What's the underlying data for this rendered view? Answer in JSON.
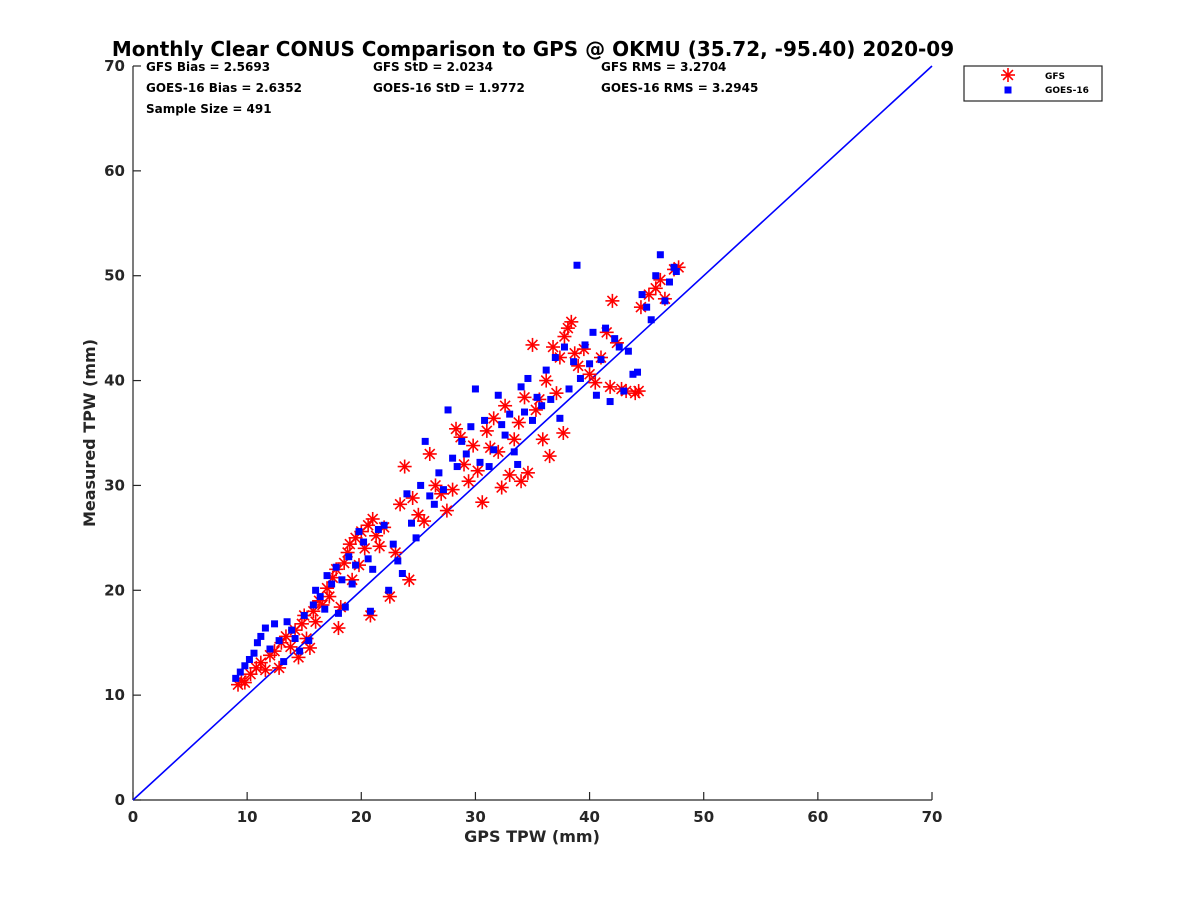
{
  "chart_data": {
    "type": "scatter",
    "title": "Monthly Clear CONUS Comparison to GPS @ OKMU (35.72, -95.40) 2020-09",
    "xlabel": "GPS TPW (mm)",
    "ylabel": "Measured TPW (mm)",
    "xlim": [
      0,
      70
    ],
    "ylim": [
      0,
      70
    ],
    "x_ticks": [
      "0",
      "10",
      "20",
      "30",
      "40",
      "50",
      "60",
      "70"
    ],
    "y_ticks": [
      "0",
      "10",
      "20",
      "30",
      "40",
      "50",
      "60",
      "70"
    ],
    "grid": false,
    "legend_position": "top-right",
    "stats": {
      "gfs_bias": "GFS Bias = 2.5693",
      "gfs_std": "GFS StD = 2.0234",
      "gfs_rms": "GFS RMS = 3.2704",
      "goes_bias": "GOES-16 Bias = 2.6352",
      "goes_std": "GOES-16 StD = 1.9772",
      "goes_rms": "GOES-16 RMS = 3.2945",
      "sample_size": "Sample Size = 491"
    },
    "reference_line": {
      "x": [
        0,
        70
      ],
      "y": [
        0,
        70
      ],
      "color": "#0000ff"
    },
    "series": [
      {
        "name": "GFS",
        "marker": "asterisk",
        "color": "#ff0000",
        "points": [
          [
            9.2,
            11.0
          ],
          [
            9.5,
            11.4
          ],
          [
            9.8,
            11.2
          ],
          [
            10.3,
            12.0
          ],
          [
            10.8,
            12.6
          ],
          [
            11.2,
            13.1
          ],
          [
            11.6,
            12.4
          ],
          [
            12.0,
            13.8
          ],
          [
            12.4,
            14.2
          ],
          [
            12.8,
            12.6
          ],
          [
            13.0,
            15.0
          ],
          [
            13.4,
            15.6
          ],
          [
            13.8,
            14.6
          ],
          [
            14.2,
            16.2
          ],
          [
            14.5,
            13.6
          ],
          [
            14.8,
            16.8
          ],
          [
            15.0,
            17.6
          ],
          [
            15.2,
            15.4
          ],
          [
            15.5,
            14.5
          ],
          [
            15.8,
            18.0
          ],
          [
            16.0,
            17.0
          ],
          [
            16.3,
            19.0
          ],
          [
            16.6,
            18.6
          ],
          [
            17.0,
            20.2
          ],
          [
            17.2,
            19.4
          ],
          [
            17.5,
            21.2
          ],
          [
            17.8,
            22.0
          ],
          [
            18.0,
            16.4
          ],
          [
            18.2,
            18.4
          ],
          [
            18.5,
            22.6
          ],
          [
            18.8,
            23.6
          ],
          [
            19.0,
            24.4
          ],
          [
            19.2,
            21.0
          ],
          [
            19.5,
            25.0
          ],
          [
            19.8,
            22.4
          ],
          [
            20.0,
            25.6
          ],
          [
            20.3,
            24.0
          ],
          [
            20.6,
            26.2
          ],
          [
            21.0,
            26.8
          ],
          [
            20.8,
            17.6
          ],
          [
            21.3,
            25.2
          ],
          [
            21.6,
            24.2
          ],
          [
            22.0,
            26.0
          ],
          [
            22.5,
            19.4
          ],
          [
            23.0,
            23.6
          ],
          [
            23.4,
            28.2
          ],
          [
            23.8,
            31.8
          ],
          [
            24.2,
            21.0
          ],
          [
            24.5,
            28.8
          ],
          [
            25.0,
            27.2
          ],
          [
            25.5,
            26.6
          ],
          [
            26.0,
            33.0
          ],
          [
            26.5,
            30.0
          ],
          [
            27.0,
            29.2
          ],
          [
            27.5,
            27.6
          ],
          [
            28.0,
            29.6
          ],
          [
            28.3,
            35.4
          ],
          [
            28.7,
            34.6
          ],
          [
            29.0,
            32.0
          ],
          [
            29.4,
            30.4
          ],
          [
            29.8,
            33.8
          ],
          [
            30.2,
            31.4
          ],
          [
            30.6,
            28.4
          ],
          [
            31.0,
            35.2
          ],
          [
            31.3,
            33.6
          ],
          [
            31.6,
            36.4
          ],
          [
            32.0,
            33.2
          ],
          [
            32.3,
            29.8
          ],
          [
            32.6,
            37.6
          ],
          [
            33.0,
            31.0
          ],
          [
            33.4,
            34.4
          ],
          [
            33.8,
            36.0
          ],
          [
            34.0,
            30.4
          ],
          [
            34.3,
            38.4
          ],
          [
            34.6,
            31.2
          ],
          [
            35.0,
            43.4
          ],
          [
            35.3,
            37.2
          ],
          [
            35.6,
            38.2
          ],
          [
            35.9,
            34.4
          ],
          [
            36.2,
            40.0
          ],
          [
            36.5,
            32.8
          ],
          [
            36.8,
            43.2
          ],
          [
            37.1,
            38.8
          ],
          [
            37.4,
            42.2
          ],
          [
            37.7,
            35.0
          ],
          [
            37.8,
            44.2
          ],
          [
            38.1,
            45.0
          ],
          [
            38.4,
            45.6
          ],
          [
            38.7,
            42.6
          ],
          [
            39.0,
            41.4
          ],
          [
            39.5,
            43.0
          ],
          [
            40.0,
            40.6
          ],
          [
            40.5,
            39.8
          ],
          [
            41.0,
            42.2
          ],
          [
            41.5,
            44.6
          ],
          [
            41.8,
            39.4
          ],
          [
            42.0,
            47.6
          ],
          [
            42.4,
            43.6
          ],
          [
            42.8,
            39.2
          ],
          [
            43.2,
            39.0
          ],
          [
            44.0,
            38.8
          ],
          [
            44.3,
            39.0
          ],
          [
            44.5,
            47.0
          ],
          [
            45.2,
            48.2
          ],
          [
            45.8,
            48.8
          ],
          [
            46.2,
            49.6
          ],
          [
            46.6,
            47.8
          ],
          [
            47.4,
            50.6
          ],
          [
            47.8,
            50.8
          ]
        ]
      },
      {
        "name": "GOES-16",
        "marker": "square",
        "color": "#0000ff",
        "points": [
          [
            9.0,
            11.6
          ],
          [
            9.4,
            12.2
          ],
          [
            9.8,
            12.8
          ],
          [
            10.2,
            13.4
          ],
          [
            10.6,
            14.0
          ],
          [
            10.9,
            15.0
          ],
          [
            11.2,
            15.6
          ],
          [
            11.6,
            16.4
          ],
          [
            12.0,
            14.4
          ],
          [
            12.4,
            16.8
          ],
          [
            12.8,
            15.2
          ],
          [
            13.2,
            13.2
          ],
          [
            13.5,
            17.0
          ],
          [
            13.9,
            16.2
          ],
          [
            14.2,
            15.4
          ],
          [
            14.6,
            14.2
          ],
          [
            15.0,
            17.6
          ],
          [
            15.4,
            15.2
          ],
          [
            15.8,
            18.6
          ],
          [
            16.0,
            20.0
          ],
          [
            16.4,
            19.4
          ],
          [
            16.8,
            18.2
          ],
          [
            17.0,
            21.4
          ],
          [
            17.4,
            20.6
          ],
          [
            17.8,
            22.2
          ],
          [
            18.0,
            17.8
          ],
          [
            18.3,
            21.0
          ],
          [
            18.6,
            18.4
          ],
          [
            18.9,
            23.2
          ],
          [
            19.2,
            20.6
          ],
          [
            19.5,
            22.4
          ],
          [
            19.8,
            25.6
          ],
          [
            20.2,
            24.6
          ],
          [
            20.6,
            23.0
          ],
          [
            20.8,
            18.0
          ],
          [
            21.0,
            22.0
          ],
          [
            21.5,
            25.8
          ],
          [
            22.0,
            26.2
          ],
          [
            22.4,
            20.0
          ],
          [
            22.8,
            24.4
          ],
          [
            23.2,
            22.8
          ],
          [
            23.6,
            21.6
          ],
          [
            24.0,
            29.2
          ],
          [
            24.4,
            26.4
          ],
          [
            24.8,
            25.0
          ],
          [
            25.2,
            30.0
          ],
          [
            25.6,
            34.2
          ],
          [
            26.0,
            29.0
          ],
          [
            26.4,
            28.2
          ],
          [
            26.8,
            31.2
          ],
          [
            27.2,
            29.6
          ],
          [
            27.6,
            37.2
          ],
          [
            28.0,
            32.6
          ],
          [
            28.4,
            31.8
          ],
          [
            28.8,
            34.2
          ],
          [
            29.2,
            33.0
          ],
          [
            29.6,
            35.6
          ],
          [
            30.0,
            39.2
          ],
          [
            30.4,
            32.2
          ],
          [
            30.8,
            36.2
          ],
          [
            31.2,
            31.8
          ],
          [
            31.6,
            33.4
          ],
          [
            32.0,
            38.6
          ],
          [
            32.3,
            35.8
          ],
          [
            32.6,
            34.8
          ],
          [
            33.0,
            36.8
          ],
          [
            33.4,
            33.2
          ],
          [
            33.7,
            32.0
          ],
          [
            34.0,
            39.4
          ],
          [
            34.3,
            37.0
          ],
          [
            34.6,
            40.2
          ],
          [
            35.0,
            36.2
          ],
          [
            35.4,
            38.4
          ],
          [
            35.8,
            37.6
          ],
          [
            36.2,
            41.0
          ],
          [
            36.6,
            38.2
          ],
          [
            37.0,
            42.2
          ],
          [
            37.4,
            36.4
          ],
          [
            37.8,
            43.2
          ],
          [
            38.2,
            39.2
          ],
          [
            38.6,
            41.8
          ],
          [
            38.9,
            51.0
          ],
          [
            39.2,
            40.2
          ],
          [
            39.6,
            43.4
          ],
          [
            40.0,
            41.6
          ],
          [
            40.3,
            44.6
          ],
          [
            40.6,
            38.6
          ],
          [
            41.0,
            42.0
          ],
          [
            41.4,
            45.0
          ],
          [
            41.8,
            38.0
          ],
          [
            42.2,
            44.0
          ],
          [
            42.6,
            43.2
          ],
          [
            43.0,
            39.0
          ],
          [
            43.4,
            42.8
          ],
          [
            43.8,
            40.6
          ],
          [
            44.2,
            40.8
          ],
          [
            44.6,
            48.2
          ],
          [
            45.0,
            47.0
          ],
          [
            45.4,
            45.8
          ],
          [
            45.8,
            50.0
          ],
          [
            46.2,
            52.0
          ],
          [
            46.6,
            47.6
          ],
          [
            47.0,
            49.4
          ],
          [
            47.4,
            50.8
          ],
          [
            47.6,
            50.4
          ]
        ]
      }
    ]
  }
}
